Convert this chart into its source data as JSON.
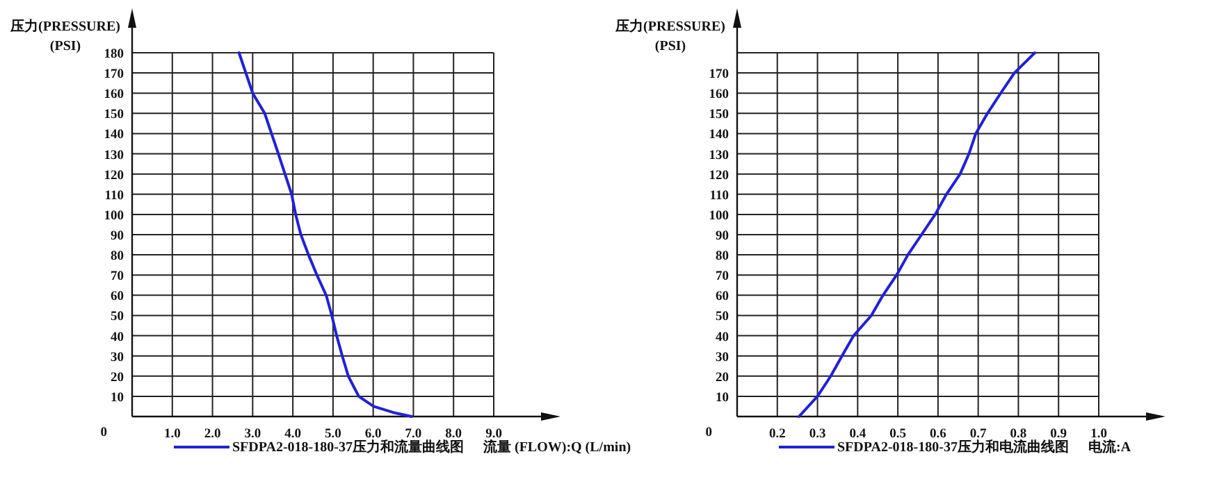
{
  "chart_data": [
    {
      "type": "line",
      "xlabel": "流量 (FLOW):Q (L/min)",
      "ylabel": "压力(PRESSURE)\n(PSI)",
      "legend": "bottom",
      "grid": true,
      "line_style": "solid",
      "xlim": [
        0,
        9
      ],
      "ylim": [
        0,
        180
      ],
      "xticks": [
        {
          "value": 1,
          "label": "1.0"
        },
        {
          "value": 2,
          "label": "2.0"
        },
        {
          "value": 3,
          "label": "3.0"
        },
        {
          "value": 4,
          "label": "4.0"
        },
        {
          "value": 5,
          "label": "5.0"
        },
        {
          "value": 6,
          "label": "6.0"
        },
        {
          "value": 7,
          "label": "7.0"
        },
        {
          "value": 8,
          "label": "8.0"
        },
        {
          "value": 9,
          "label": "9.0"
        }
      ],
      "yticks": [
        10,
        20,
        30,
        40,
        50,
        60,
        70,
        80,
        90,
        100,
        110,
        120,
        130,
        140,
        150,
        160,
        170,
        180
      ],
      "annotations": [
        "0"
      ],
      "series": [
        {
          "name": "SFDPA2-018-180-37压力和流量曲线图",
          "color": "#2020d8",
          "x": [
            2.66,
            3.0,
            3.3,
            3.64,
            3.97,
            4.07,
            4.2,
            4.39,
            4.6,
            4.83,
            4.97,
            5.09,
            5.23,
            5.38,
            5.64,
            6.01,
            6.5,
            6.96
          ],
          "values": [
            180,
            160,
            150,
            130,
            110,
            100,
            90,
            80,
            70,
            60,
            50,
            40,
            30,
            20,
            10,
            5,
            2,
            0
          ]
        }
      ]
    },
    {
      "type": "line",
      "xlabel": "电流:A",
      "ylabel": "压力(PRESSURE)\n(PSI)",
      "legend": "bottom",
      "grid": true,
      "line_style": "solid",
      "xlim": [
        0.1,
        1.0
      ],
      "ylim": [
        0,
        180
      ],
      "xticks": [
        0.2,
        0.3,
        0.4,
        0.5,
        0.6,
        0.7,
        0.8,
        0.9,
        {
          "value": 1.0,
          "label": "1.0"
        }
      ],
      "yticks": [
        10,
        20,
        30,
        40,
        50,
        60,
        70,
        80,
        90,
        100,
        110,
        120,
        130,
        140,
        150,
        160,
        170,
        {
          "value": 180,
          "label": null
        }
      ],
      "annotations": [
        "0"
      ],
      "series": [
        {
          "name": "SFDPA2-018-180-37压力和电流曲线图",
          "color": "#2020d8",
          "x": [
            0.254,
            0.3,
            0.333,
            0.361,
            0.39,
            0.434,
            0.463,
            0.497,
            0.525,
            0.559,
            0.593,
            0.621,
            0.655,
            0.677,
            0.694,
            0.723,
            0.756,
            0.79,
            0.841
          ],
          "values": [
            0,
            10,
            20,
            30,
            40,
            50,
            60,
            70,
            80,
            90,
            100,
            110,
            120,
            130,
            140,
            150,
            160,
            170,
            180
          ]
        }
      ]
    }
  ]
}
